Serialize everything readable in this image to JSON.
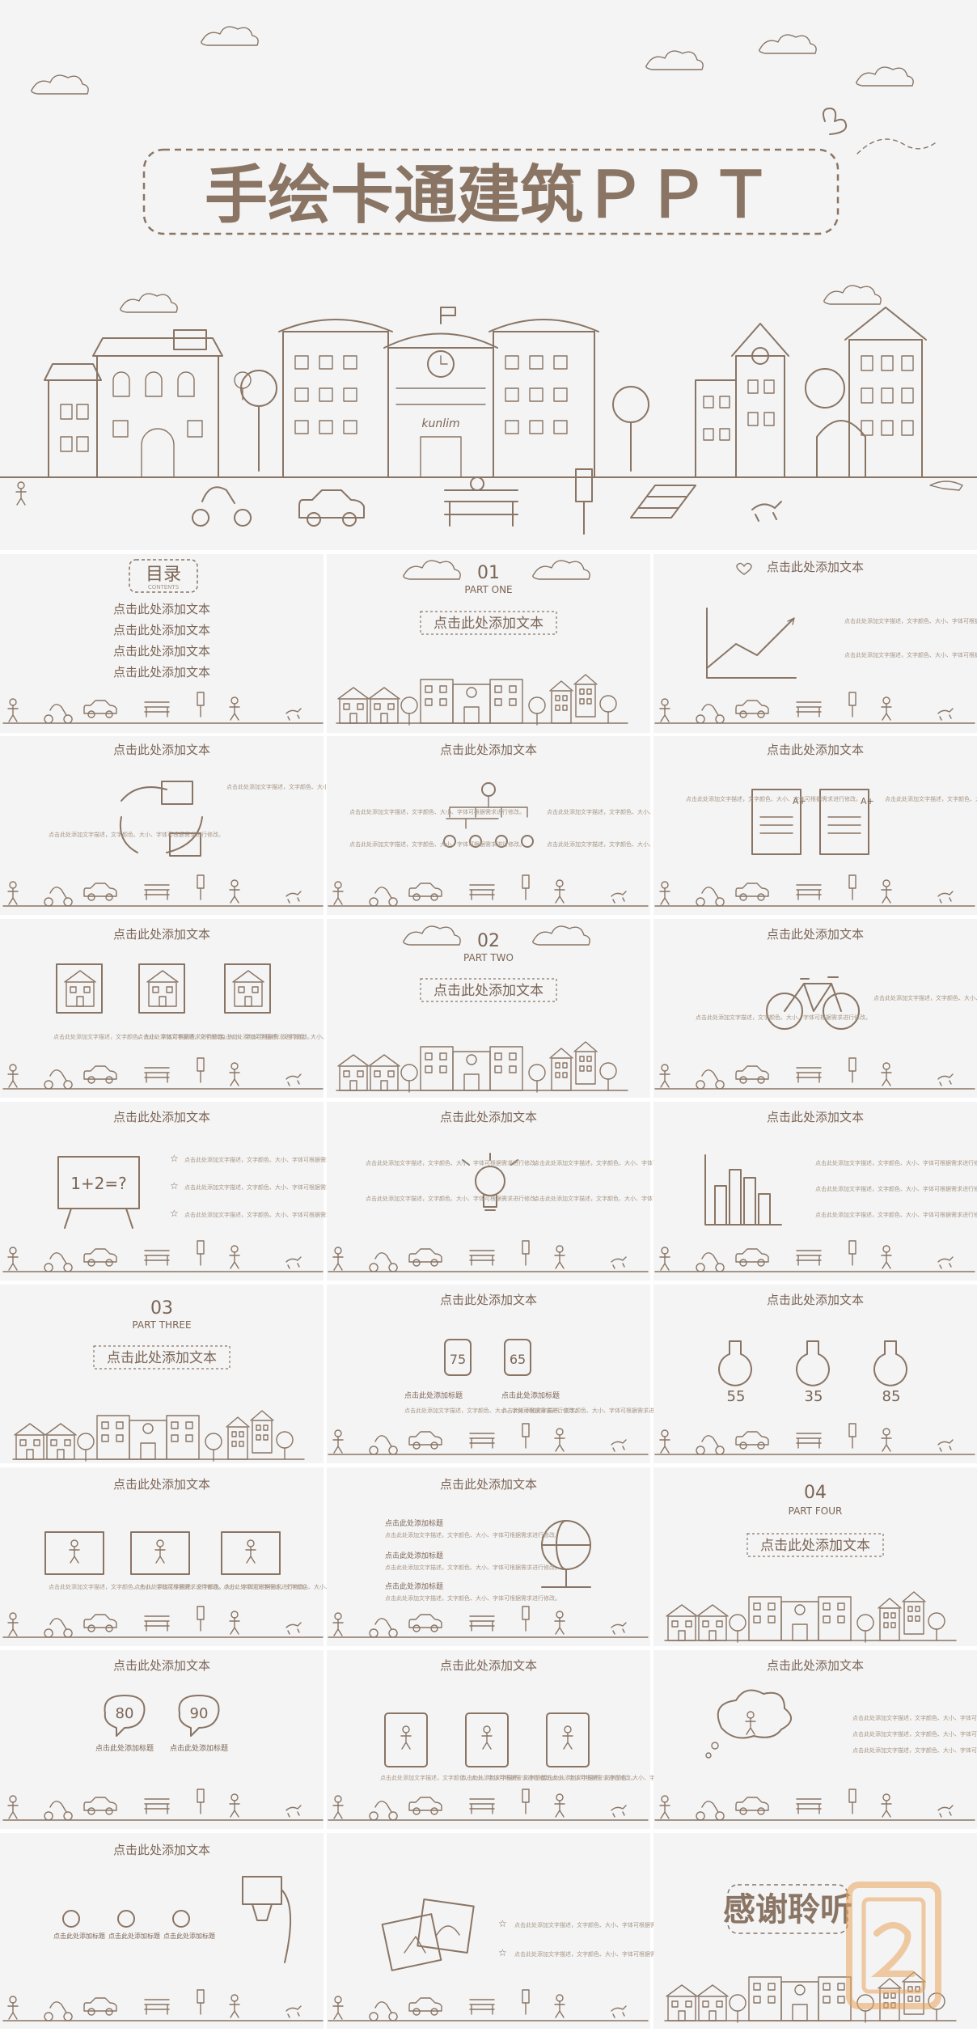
{
  "cover": {
    "title": "手绘卡通建筑ＰＰＴ",
    "sign_text": "kunlim"
  },
  "common": {
    "header_text": "点击此处添加文本",
    "body_text": "点击此处添加文字描述，文字颜色、大小、字体可根据需求进行修改。",
    "body_short": "点击此处添加文字描述，文字颜色、大小、字体可根据需求进行修改。",
    "subtitle_text": "点击此处添加标题"
  },
  "toc": {
    "title": "目录",
    "subtitle": "CONTENTS",
    "items": [
      "点击此处添加文本",
      "点击此处添加文本",
      "点击此处添加文本",
      "点击此处添加文本"
    ]
  },
  "sections": [
    {
      "num": "01",
      "part": "PART ONE",
      "text": "点击此处添加文本"
    },
    {
      "num": "02",
      "part": "PART TWO",
      "text": "点击此处添加文本"
    },
    {
      "num": "03",
      "part": "PART THREE",
      "text": "点击此处添加文本"
    },
    {
      "num": "04",
      "part": "PART FOUR",
      "text": "点击此处添加文本"
    }
  ],
  "stats": {
    "tags": [
      "75",
      "65"
    ],
    "flasks": [
      "55",
      "35",
      "85"
    ],
    "bubbles": [
      "80",
      "90"
    ],
    "percent": "%"
  },
  "blackboard_text": "1+2=?",
  "paper_marks": [
    "A+",
    "A+"
  ],
  "closing": {
    "title": "感谢聆听"
  },
  "colors": {
    "ink": "#8a7565",
    "slide_bg": "#f4f4f4",
    "watermark": "#e9a55f"
  }
}
